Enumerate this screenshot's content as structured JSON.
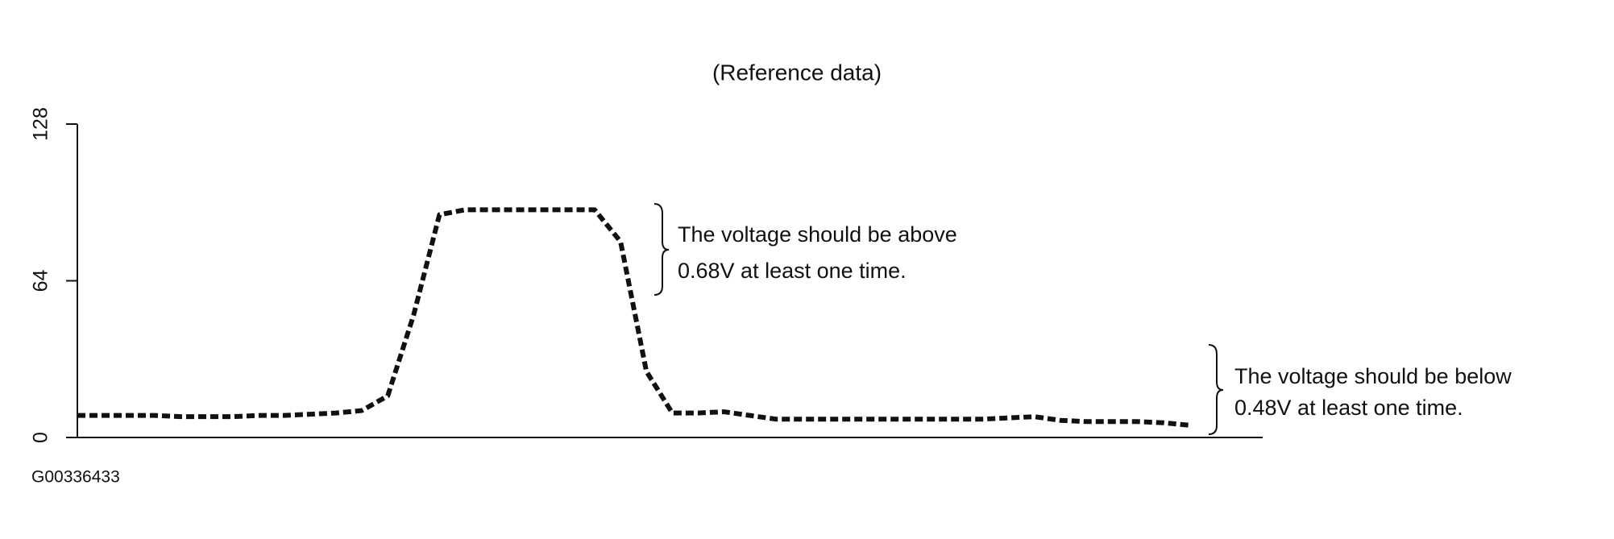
{
  "chart_data": {
    "type": "line",
    "title": "(Reference data)",
    "values": [
      9,
      9,
      9,
      9,
      8.5,
      8.5,
      8.5,
      9,
      9,
      9.5,
      10,
      11,
      17,
      50,
      91,
      93,
      93,
      93,
      93,
      93,
      93,
      80,
      27,
      10,
      10,
      10.5,
      9,
      7.5,
      7.5,
      7.5,
      7.5,
      7.5,
      7.5,
      7.5,
      7.5,
      7.5,
      8,
      8.5,
      7,
      6.5,
      6.5,
      6.5,
      6,
      5
    ],
    "color": "#111111",
    "ylim": [
      0,
      128
    ],
    "yticks": [
      0,
      64,
      128
    ],
    "annotations": [
      [
        "The voltage should be above",
        "0.68V at least one time."
      ],
      [
        "The voltage should be below",
        "0.48V at least one time."
      ]
    ],
    "figure_id": "G00336433"
  }
}
